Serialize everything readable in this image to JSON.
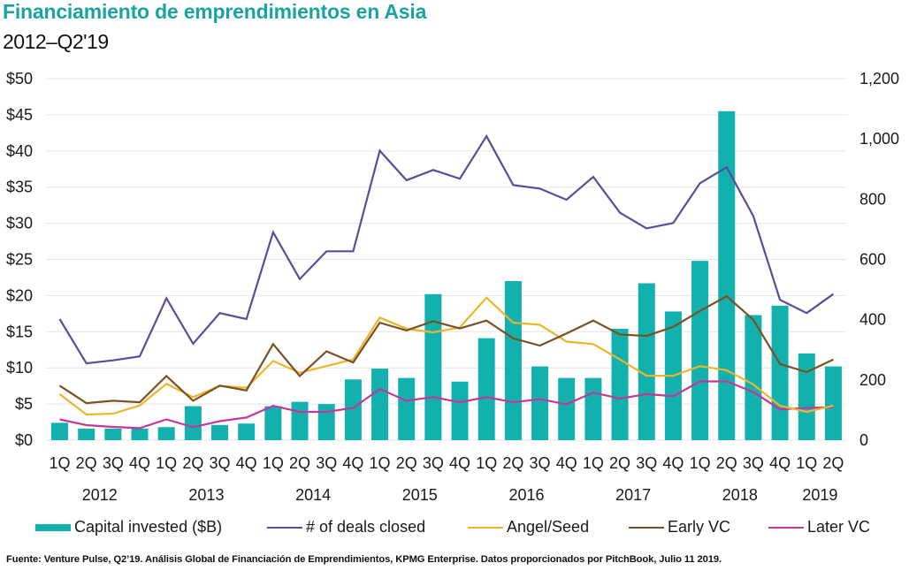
{
  "header": {
    "title": "Financiamiento de emprendimientos en Asia",
    "subtitle": "2012–Q2'19"
  },
  "colors": {
    "title": "#1aa3a3",
    "capital_invested": "#12b1ae",
    "deals_closed": "#56509a",
    "angel_seed": "#ecb52c",
    "early_vc": "#7a5125",
    "later_vc": "#c4389a",
    "grid": "#e6e6e6"
  },
  "chart_data": {
    "type": "bar+line",
    "title": "Financiamiento de emprendimientos en Asia",
    "subtitle": "2012–Q2'19",
    "categories": [
      "1Q",
      "2Q",
      "3Q",
      "4Q",
      "1Q",
      "2Q",
      "3Q",
      "4Q",
      "1Q",
      "2Q",
      "3Q",
      "4Q",
      "1Q",
      "2Q",
      "3Q",
      "4Q",
      "1Q",
      "2Q",
      "3Q",
      "4Q",
      "1Q",
      "2Q",
      "3Q",
      "4Q",
      "1Q",
      "2Q",
      "3Q",
      "4Q",
      "1Q",
      "2Q"
    ],
    "year_groups": [
      {
        "label": "2012",
        "start": 0,
        "count": 4
      },
      {
        "label": "2013",
        "start": 4,
        "count": 4
      },
      {
        "label": "2014",
        "start": 8,
        "count": 4
      },
      {
        "label": "2015",
        "start": 12,
        "count": 4
      },
      {
        "label": "2016",
        "start": 16,
        "count": 4
      },
      {
        "label": "2017",
        "start": 20,
        "count": 4
      },
      {
        "label": "2018",
        "start": 24,
        "count": 4
      },
      {
        "label": "2019",
        "start": 28,
        "count": 2
      }
    ],
    "y_left": {
      "range": [
        0,
        50
      ],
      "ticks": [
        0,
        5,
        10,
        15,
        20,
        25,
        30,
        35,
        40,
        45,
        50
      ],
      "tick_labels": [
        "$0",
        "$5",
        "$10",
        "$15",
        "$20",
        "$25",
        "$30",
        "$35",
        "$40",
        "$45",
        "$50"
      ]
    },
    "y_right": {
      "range": [
        0,
        1200
      ],
      "ticks": [
        0,
        200,
        400,
        600,
        800,
        1000,
        1200
      ],
      "tick_labels": [
        "0",
        "200",
        "400",
        "600",
        "800",
        "1,000",
        "1,200"
      ]
    },
    "grid": true,
    "legend_position": "bottom",
    "series": [
      {
        "name": "Capital invested ($B)",
        "type": "bar",
        "axis": "left",
        "color_key": "capital_invested",
        "values": [
          2.4,
          1.6,
          1.6,
          1.6,
          1.8,
          4.7,
          2.1,
          2.3,
          4.7,
          5.3,
          5.0,
          8.4,
          9.9,
          8.6,
          20.2,
          8.1,
          14.1,
          22.0,
          10.2,
          8.6,
          8.6,
          15.4,
          21.7,
          17.8,
          24.8,
          45.5,
          17.3,
          18.6,
          12.0,
          10.2
        ]
      },
      {
        "name": "# of deals closed",
        "type": "line",
        "axis": "right",
        "color_key": "deals_closed",
        "values": [
          402,
          255,
          265,
          278,
          471,
          320,
          422,
          402,
          690,
          535,
          627,
          627,
          961,
          863,
          897,
          868,
          1009,
          847,
          835,
          798,
          874,
          755,
          703,
          721,
          853,
          906,
          744,
          466,
          422,
          485
        ]
      },
      {
        "name": "Angel/Seed",
        "type": "line",
        "axis": "right",
        "color_key": "angel_seed",
        "values": [
          153,
          85,
          88,
          115,
          187,
          143,
          180,
          174,
          263,
          224,
          246,
          268,
          407,
          370,
          358,
          374,
          473,
          390,
          383,
          327,
          319,
          268,
          214,
          214,
          246,
          232,
          185,
          114,
          94,
          114
        ]
      },
      {
        "name": "Early VC",
        "type": "line",
        "axis": "right",
        "color_key": "early_vc",
        "values": [
          181,
          123,
          131,
          126,
          213,
          131,
          181,
          165,
          319,
          213,
          295,
          258,
          390,
          364,
          395,
          371,
          397,
          338,
          314,
          354,
          397,
          351,
          346,
          376,
          429,
          478,
          400,
          253,
          226,
          268
        ]
      },
      {
        "name": "Later VC",
        "type": "line",
        "axis": "right",
        "color_key": "later_vc",
        "values": [
          69,
          50,
          44,
          40,
          69,
          43,
          63,
          75,
          114,
          94,
          94,
          107,
          170,
          131,
          143,
          126,
          143,
          126,
          136,
          119,
          158,
          138,
          153,
          146,
          195,
          195,
          160,
          102,
          107,
          109
        ]
      }
    ]
  },
  "legend": {
    "items": [
      {
        "label": "Capital invested ($B)",
        "kind": "bar",
        "color_key": "capital_invested"
      },
      {
        "label": "# of deals closed",
        "kind": "line",
        "color_key": "deals_closed"
      },
      {
        "label": "Angel/Seed",
        "kind": "line",
        "color_key": "angel_seed"
      },
      {
        "label": "Early VC",
        "kind": "line",
        "color_key": "early_vc"
      },
      {
        "label": "Later VC",
        "kind": "line",
        "color_key": "later_vc"
      }
    ]
  },
  "footnote": "Fuente: Venture Pulse, Q2’19. Análisis Global de Financiación de Emprendimientos, KPMG Enterprise. Datos proporcionados por PitchBook, Julio 11 2019."
}
